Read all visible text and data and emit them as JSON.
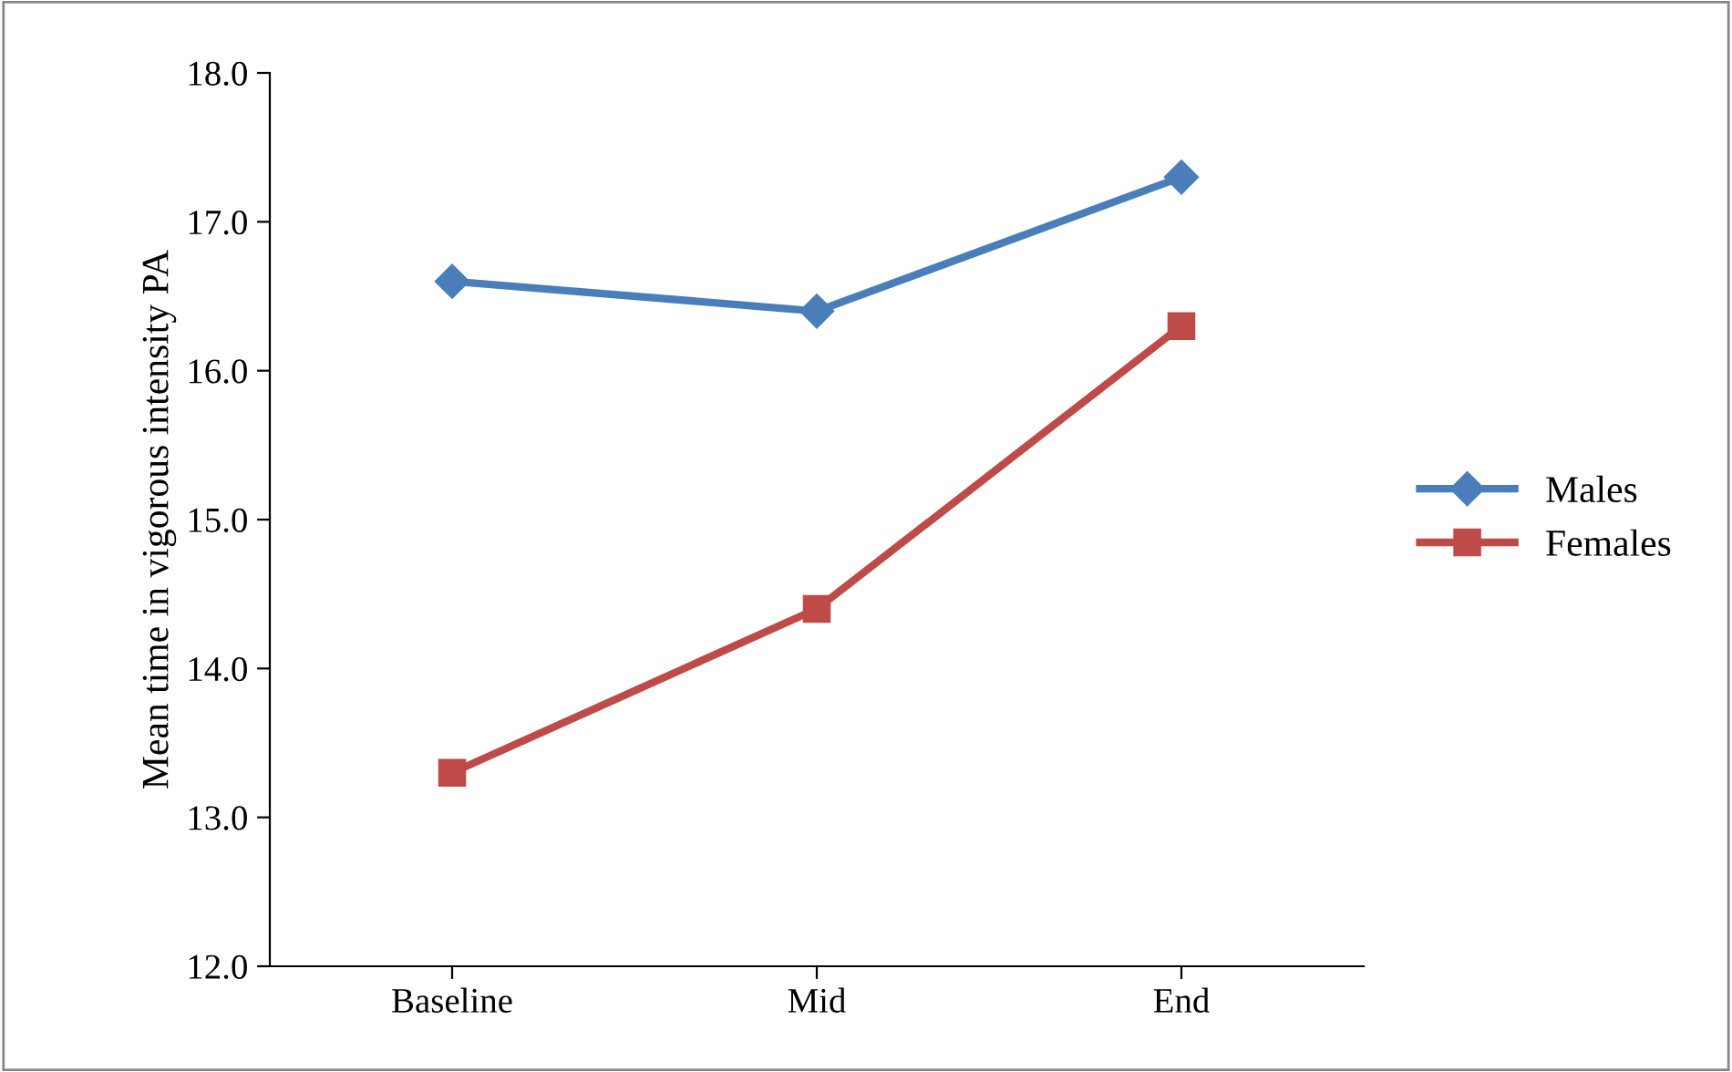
{
  "chart_data": {
    "type": "line",
    "ylabel": "Mean time in vigorous intensity PA",
    "categories": [
      "Baseline",
      "Mid",
      "End"
    ],
    "series": [
      {
        "name": "Males",
        "color": "#4a7ebb",
        "marker": "diamond",
        "values": [
          16.6,
          16.4,
          17.3
        ]
      },
      {
        "name": "Females",
        "color": "#be4b48",
        "marker": "square",
        "values": [
          13.3,
          14.4,
          16.3
        ]
      }
    ],
    "ylim": [
      12,
      18
    ],
    "yticks": [
      {
        "value": 12,
        "label": "12.0"
      },
      {
        "value": 13,
        "label": "13.0"
      },
      {
        "value": 14,
        "label": "14.0"
      },
      {
        "value": 15,
        "label": "15.0"
      },
      {
        "value": 16,
        "label": "16.0"
      },
      {
        "value": 17,
        "label": "17.0"
      },
      {
        "value": 18,
        "label": "18.0"
      }
    ],
    "grid": false,
    "legend": "right",
    "line_style": "solid"
  }
}
